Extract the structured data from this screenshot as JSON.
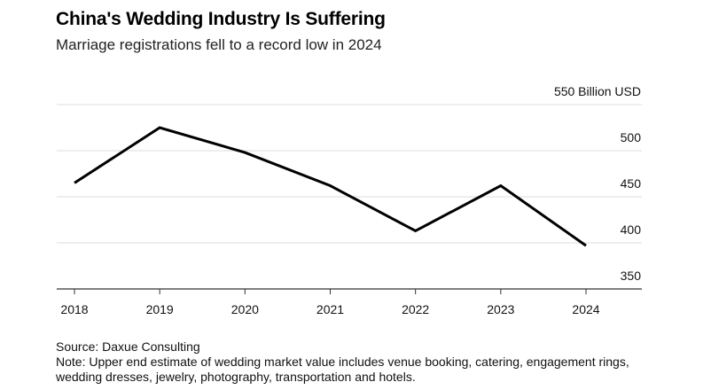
{
  "header": {
    "title": "China's Wedding Industry Is Suffering",
    "subtitle": "Marriage registrations fell to a record low in 2024"
  },
  "footer": {
    "source": "Source: Daxue Consulting",
    "note": "Note: Upper end estimate of wedding market value includes venue booking, catering, engagement rings, wedding dresses, jewelry, photography, transportation and hotels."
  },
  "colors": {
    "line": "#000000",
    "grid": "#dddddd",
    "axis": "#333333"
  },
  "chart_data": {
    "type": "line",
    "title": "China's Wedding Industry Is Suffering",
    "subtitle": "Marriage registrations fell to a record low in 2024",
    "y_unit_label": "550 Billion USD",
    "x": [
      "2018",
      "2019",
      "2020",
      "2021",
      "2022",
      "2023",
      "2024"
    ],
    "series": [
      {
        "values": [
          465,
          525,
          498,
          462,
          413,
          462,
          397
        ]
      }
    ],
    "ylim": [
      350,
      550
    ],
    "yticks": [
      350,
      400,
      450,
      500,
      550
    ],
    "ytick_labels": [
      "350",
      "400",
      "450",
      "500",
      "550 Billion USD"
    ],
    "y_axis_position": "right",
    "grid": true
  }
}
